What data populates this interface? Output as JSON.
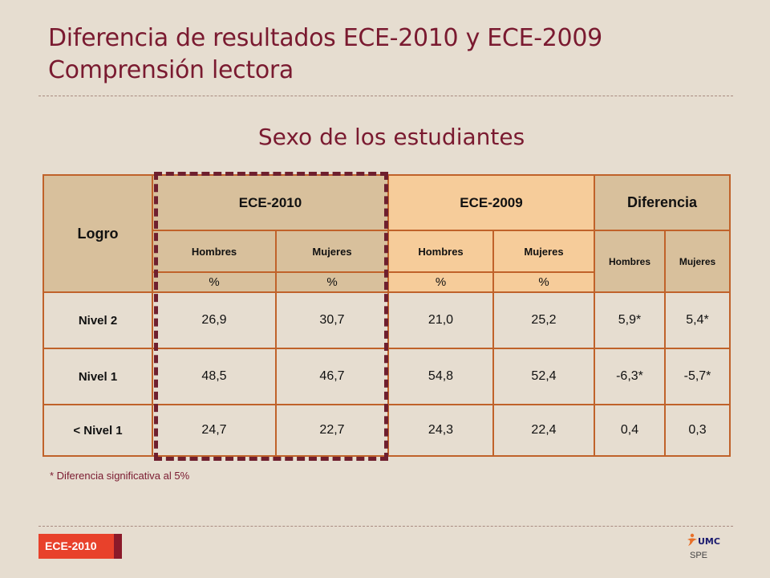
{
  "header": {
    "title_line1": "Diferencia de resultados ECE-2010 y ECE-2009",
    "title_line2": "Comprensión lectora"
  },
  "subtitle": "Sexo de los estudiantes",
  "table": {
    "logro_header": "Logro",
    "groups": {
      "ece2010": "ECE-2010",
      "ece2009": "ECE-2009",
      "diferencia": "Diferencia"
    },
    "subheaders": {
      "ece2010": [
        "Hombres",
        "Mujeres"
      ],
      "ece2009": [
        "Hombres",
        "Mujeres"
      ],
      "diferencia": [
        "Hombres",
        "Mujeres"
      ]
    },
    "unit": "%",
    "rows": [
      {
        "label": "Nivel 2",
        "values": [
          "26,9",
          "30,7",
          "21,0",
          "25,2",
          "5,9*",
          "5,4*"
        ]
      },
      {
        "label": "Nivel 1",
        "values": [
          "48,5",
          "46,7",
          "54,8",
          "52,4",
          "-6,3*",
          "-5,7*"
        ]
      },
      {
        "label": "< Nivel 1",
        "values": [
          "24,7",
          "22,7",
          "24,3",
          "22,4",
          "0,4",
          "0,3"
        ]
      }
    ]
  },
  "footnote": "* Diferencia significativa al 5%",
  "footer": {
    "badge": "ECE-2010",
    "logo_text": "UMC",
    "logo_subtext": "SPE"
  },
  "colors": {
    "title": "#7a1a30",
    "header_ece2010": "#d8c09c",
    "header_ece2009": "#f6cc9a",
    "border": "#c0622a",
    "highlight_box": "#6e1f2e",
    "badge": "#e8412b"
  }
}
